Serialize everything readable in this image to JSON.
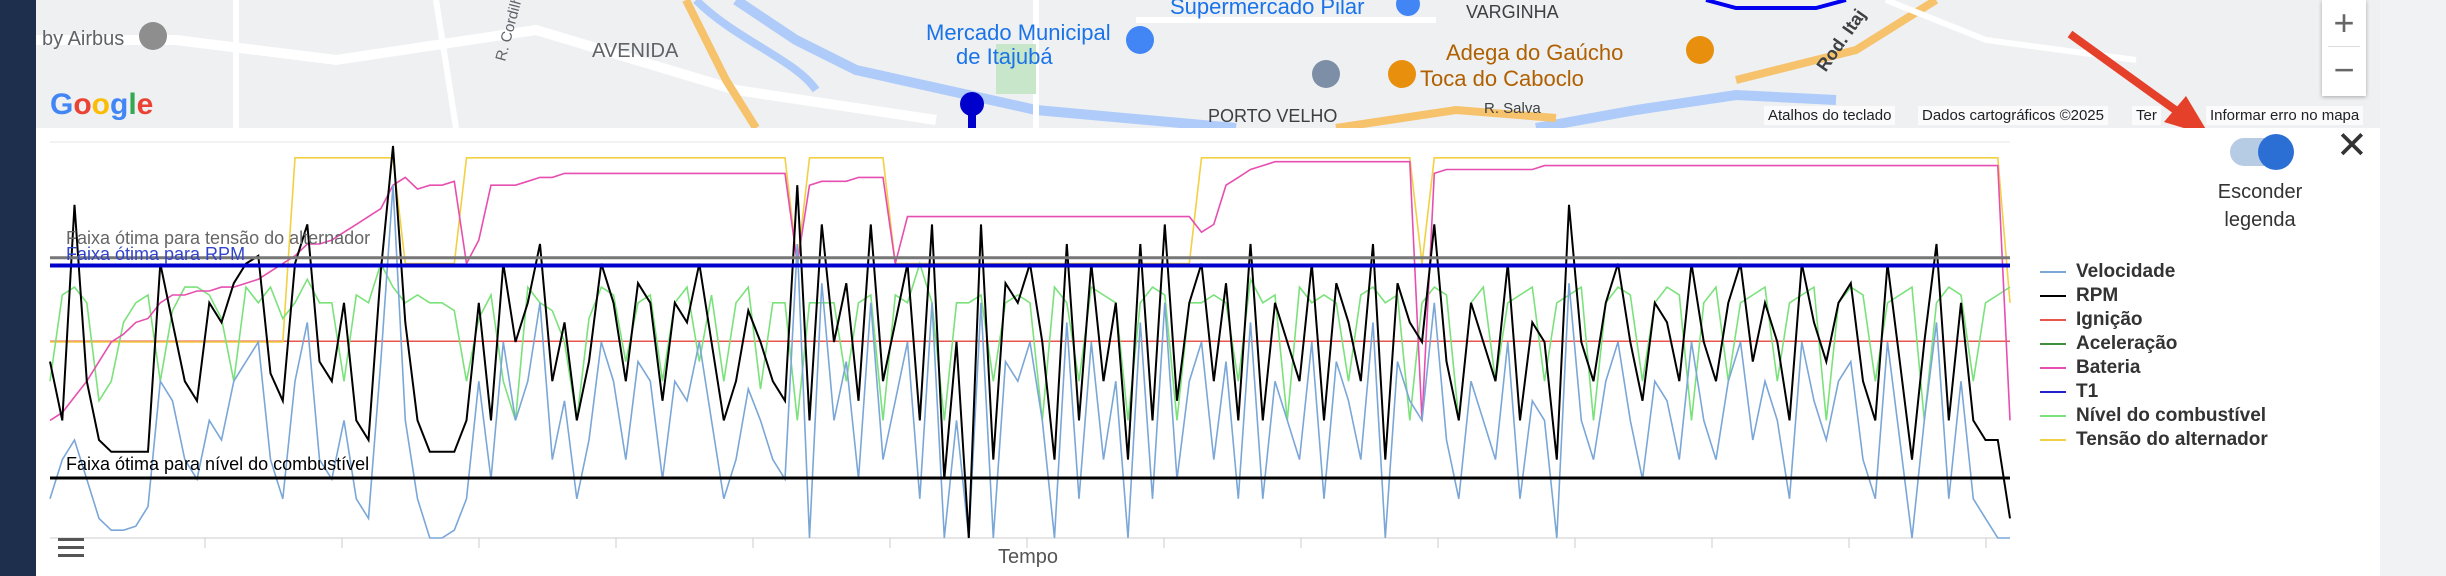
{
  "map": {
    "labels": [
      {
        "text": "by Airbus",
        "style": "dark"
      },
      {
        "text": "AVENIDA",
        "style": "dark"
      },
      {
        "text": "R. Cordilh",
        "style": "dark"
      },
      {
        "text": "Mercado Municipal",
        "style": "blue"
      },
      {
        "text": "de Itajubá",
        "style": "blue"
      },
      {
        "text": "Supermercado Pilar",
        "style": "blue"
      },
      {
        "text": "VARGINHA",
        "style": "dark"
      },
      {
        "text": "Adega do Gaúcho",
        "style": "orange"
      },
      {
        "text": "Toca do Caboclo",
        "style": "orange"
      },
      {
        "text": "PORTO VELHO",
        "style": "dark"
      },
      {
        "text": "R. Salva",
        "style": "dark"
      },
      {
        "text": "Rod. Itaj",
        "style": "dark"
      }
    ],
    "logo": "Google",
    "attribution": {
      "shortcuts": "Atalhos do teclado",
      "data": "Dados cartográficos ©2025",
      "terms": "Ter",
      "report": "Informar erro no mapa"
    },
    "zoom_in": "+",
    "zoom_out": "−"
  },
  "controls": {
    "toggle_label_line1": "Esconder",
    "toggle_label_line2": "legenda",
    "toggle_on": true,
    "close_icon": "close-icon"
  },
  "chart_data": {
    "type": "line",
    "xlabel": "Tempo",
    "ylabel": "",
    "title": "",
    "ylim": [
      0,
      100
    ],
    "bands": [
      {
        "label": "Faixa ótima para tensão do alternador",
        "value": 71.5,
        "color": "#777777"
      },
      {
        "label": "Faixa ótima para RPM",
        "value": 69.5,
        "color": "#0000cc"
      },
      {
        "label": "Faixa ótima para nível do combustível",
        "value": 15.3,
        "color": "#000000"
      }
    ],
    "ignicao_level": 50.2,
    "legend": [
      {
        "name": "Velocidade",
        "color": "#7aa7d8"
      },
      {
        "name": "RPM",
        "color": "#000000"
      },
      {
        "name": "Ignição",
        "color": "#e8574b"
      },
      {
        "name": "Aceleração",
        "color": "#3f8f3f"
      },
      {
        "name": "Bateria",
        "color": "#e64fb0"
      },
      {
        "name": "T1",
        "color": "#2222cc"
      },
      {
        "name": "Nível do combustível",
        "color": "#7be27b"
      },
      {
        "name": "Tensão do alternador",
        "color": "#f2d044"
      }
    ],
    "series": [
      {
        "name": "RPM",
        "values": [
          45,
          30,
          85,
          40,
          25,
          22,
          22,
          22,
          22,
          70,
          55,
          40,
          35,
          60,
          55,
          65,
          70,
          72,
          42,
          35,
          70,
          80,
          45,
          40,
          60,
          30,
          25,
          68,
          100,
          55,
          30,
          22,
          22,
          22,
          30,
          60,
          30,
          70,
          50,
          60,
          75,
          40,
          55,
          30,
          45,
          70,
          60,
          40,
          65,
          60,
          35,
          60,
          55,
          70,
          50,
          30,
          40,
          58,
          50,
          40,
          35,
          90,
          30,
          80,
          50,
          65,
          35,
          80,
          40,
          55,
          70,
          30,
          80,
          15,
          50,
          0,
          80,
          20,
          65,
          60,
          70,
          50,
          20,
          75,
          30,
          70,
          40,
          60,
          20,
          75,
          30,
          80,
          35,
          60,
          70,
          40,
          65,
          30,
          75,
          30,
          60,
          50,
          40,
          70,
          30,
          65,
          55,
          40,
          75,
          20,
          65,
          55,
          50,
          80,
          45,
          30,
          60,
          50,
          40,
          70,
          30,
          55,
          50,
          20,
          85,
          50,
          40,
          60,
          70,
          50,
          35,
          60,
          55,
          40,
          70,
          50,
          40,
          60,
          70,
          45,
          60,
          50,
          30,
          70,
          55,
          45,
          60,
          65,
          40,
          30,
          70,
          45,
          20,
          50,
          75,
          30,
          60,
          30,
          25,
          25,
          5
        ]
      },
      {
        "name": "Velocidade",
        "values": [
          10,
          20,
          25,
          15,
          5,
          2,
          2,
          3,
          8,
          40,
          35,
          20,
          15,
          30,
          25,
          40,
          45,
          50,
          20,
          10,
          40,
          55,
          20,
          15,
          30,
          10,
          5,
          45,
          90,
          30,
          10,
          0,
          0,
          2,
          10,
          40,
          15,
          50,
          30,
          40,
          60,
          20,
          35,
          10,
          25,
          50,
          40,
          20,
          45,
          40,
          15,
          40,
          35,
          50,
          30,
          10,
          20,
          38,
          30,
          20,
          15,
          75,
          0,
          65,
          30,
          45,
          15,
          60,
          20,
          35,
          50,
          10,
          60,
          0,
          30,
          0,
          60,
          0,
          45,
          40,
          50,
          30,
          0,
          55,
          10,
          50,
          20,
          40,
          0,
          55,
          10,
          60,
          15,
          40,
          50,
          20,
          45,
          10,
          55,
          10,
          40,
          30,
          20,
          50,
          10,
          45,
          35,
          20,
          55,
          0,
          45,
          35,
          30,
          60,
          25,
          10,
          40,
          30,
          20,
          50,
          10,
          35,
          30,
          0,
          65,
          30,
          20,
          40,
          50,
          30,
          15,
          40,
          35,
          20,
          50,
          30,
          20,
          40,
          50,
          25,
          40,
          30,
          10,
          50,
          35,
          25,
          40,
          45,
          20,
          10,
          50,
          25,
          0,
          30,
          55,
          10,
          40,
          10,
          5,
          0,
          0
        ]
      },
      {
        "name": "Bateria",
        "values": [
          30,
          32,
          36,
          40,
          45,
          50,
          52,
          55,
          56,
          60,
          62,
          62,
          63,
          63,
          64,
          64,
          65,
          66,
          68,
          70,
          72,
          75,
          75,
          76,
          78,
          80,
          82,
          84,
          90,
          92,
          89,
          90,
          90,
          91,
          70,
          76,
          90,
          90,
          90,
          91,
          92,
          92,
          93,
          93,
          93,
          93,
          93,
          93,
          93,
          93,
          93,
          93,
          93,
          93,
          93,
          93,
          93,
          93,
          93,
          93,
          93,
          70,
          90,
          91,
          91,
          91,
          92,
          92,
          92,
          70,
          82,
          82,
          82,
          82,
          82,
          82,
          82,
          82,
          82,
          82,
          82,
          82,
          82,
          82,
          82,
          82,
          82,
          82,
          82,
          82,
          82,
          82,
          82,
          82,
          78,
          80,
          90,
          92,
          94,
          95,
          96,
          96,
          96,
          96,
          96,
          96,
          96,
          96,
          96,
          96,
          96,
          96,
          30,
          93,
          94,
          94,
          94,
          94,
          94,
          94,
          94,
          94,
          95,
          95,
          95,
          95,
          95,
          95,
          95,
          95,
          95,
          95,
          95,
          95,
          95,
          95,
          95,
          95,
          95,
          95,
          95,
          95,
          95,
          95,
          95,
          95,
          95,
          95,
          95,
          95,
          95,
          95,
          95,
          95,
          95,
          95,
          95,
          95,
          95,
          95,
          30
        ]
      },
      {
        "name": "Nível do combustível",
        "values": [
          40,
          62,
          64,
          60,
          35,
          40,
          55,
          60,
          62,
          40,
          58,
          64,
          64,
          62,
          56,
          40,
          64,
          60,
          64,
          56,
          60,
          66,
          60,
          60,
          40,
          62,
          60,
          70,
          64,
          60,
          62,
          60,
          60,
          58,
          40,
          56,
          62,
          40,
          30,
          64,
          60,
          58,
          50,
          30,
          56,
          64,
          62,
          45,
          60,
          62,
          40,
          60,
          64,
          45,
          62,
          40,
          60,
          64,
          38,
          60,
          60,
          30,
          60,
          60,
          60,
          40,
          60,
          62,
          30,
          62,
          60,
          70,
          60,
          30,
          60,
          60,
          62,
          40,
          60,
          62,
          60,
          30,
          64,
          60,
          40,
          64,
          62,
          60,
          30,
          60,
          64,
          62,
          30,
          60,
          60,
          62,
          60,
          40,
          66,
          60,
          62,
          30,
          64,
          60,
          62,
          60,
          40,
          62,
          64,
          60,
          62,
          30,
          60,
          64,
          62,
          30,
          60,
          64,
          40,
          60,
          62,
          64,
          40,
          60,
          62,
          64,
          30,
          60,
          64,
          62,
          40,
          60,
          64,
          62,
          30,
          60,
          64,
          40,
          60,
          62,
          64,
          40,
          60,
          62,
          64,
          30,
          60,
          64,
          62,
          40,
          60,
          62,
          64,
          30,
          60,
          64,
          62,
          40,
          60,
          62,
          64
        ]
      },
      {
        "name": "Tensão do alternador",
        "values": [
          50,
          50,
          50,
          50,
          50,
          50,
          50,
          50,
          50,
          50,
          50,
          50,
          50,
          50,
          50,
          50,
          50,
          50,
          50,
          50,
          97,
          97,
          97,
          97,
          97,
          97,
          97,
          97,
          97,
          70,
          70,
          70,
          70,
          70,
          97,
          97,
          97,
          97,
          97,
          97,
          97,
          97,
          97,
          97,
          97,
          97,
          97,
          97,
          97,
          97,
          97,
          97,
          97,
          97,
          97,
          97,
          97,
          97,
          97,
          97,
          97,
          70,
          97,
          97,
          97,
          97,
          97,
          97,
          97,
          70,
          70,
          70,
          70,
          70,
          70,
          70,
          70,
          70,
          70,
          70,
          70,
          70,
          70,
          70,
          70,
          70,
          70,
          70,
          70,
          70,
          70,
          70,
          70,
          70,
          97,
          97,
          97,
          97,
          97,
          97,
          97,
          97,
          97,
          97,
          97,
          97,
          97,
          97,
          97,
          97,
          97,
          97,
          70,
          97,
          97,
          97,
          97,
          97,
          97,
          97,
          97,
          97,
          97,
          97,
          97,
          97,
          97,
          97,
          97,
          97,
          97,
          97,
          97,
          97,
          97,
          97,
          97,
          97,
          97,
          97,
          97,
          97,
          97,
          97,
          97,
          97,
          97,
          97,
          97,
          97,
          97,
          97,
          97,
          97,
          97,
          97,
          97,
          97,
          97,
          97,
          60
        ]
      }
    ]
  }
}
